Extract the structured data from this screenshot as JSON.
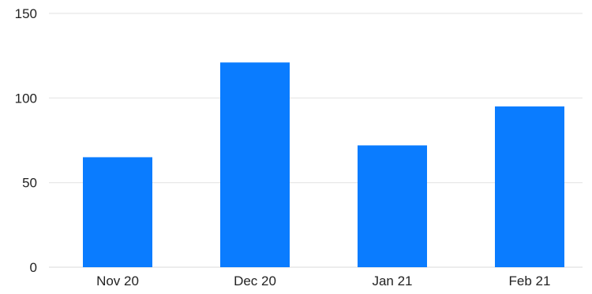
{
  "chart_data": {
    "type": "bar",
    "title": "",
    "xlabel": "",
    "ylabel": "",
    "categories": [
      "Nov 20",
      "Dec 20",
      "Jan 21",
      "Feb 21"
    ],
    "values": [
      65,
      121,
      72,
      95
    ],
    "ylim": [
      0,
      150
    ],
    "yticks": [
      0,
      50,
      100,
      150
    ],
    "ytick_labels": [
      "0",
      "50",
      "100",
      "150"
    ],
    "grid": true,
    "legend": "none",
    "colors": {
      "bar": "#0a7cff",
      "grid": "#e6e6e6",
      "text": "#222222"
    }
  }
}
